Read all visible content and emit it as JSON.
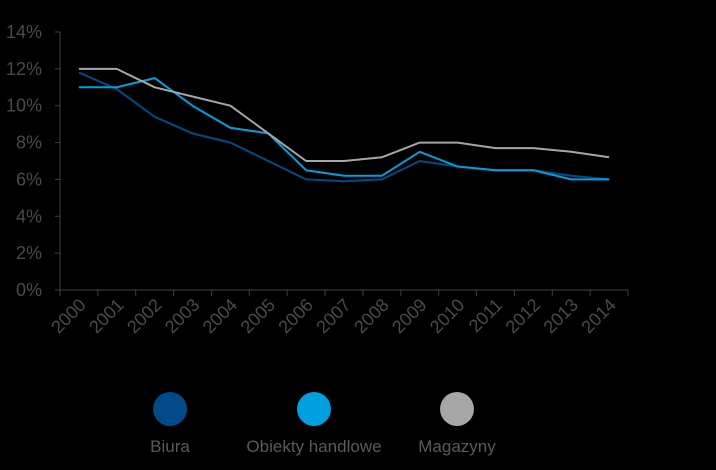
{
  "chart_data": {
    "type": "line",
    "x": [
      "2000",
      "2001",
      "2002",
      "2003",
      "2004",
      "2005",
      "2006",
      "2007",
      "2008",
      "2009",
      "2010",
      "2011",
      "2012",
      "2013",
      "2014"
    ],
    "yticks": [
      "0%",
      "2%",
      "4%",
      "6%",
      "8%",
      "10%",
      "12%",
      "14%"
    ],
    "ylim": [
      0,
      14
    ],
    "grid": false,
    "legend_position": "bottom",
    "series": [
      {
        "name": "Biura",
        "color": "#004b87",
        "values": [
          11.8,
          10.9,
          9.4,
          8.5,
          8.0,
          7.0,
          6.0,
          5.9,
          6.0,
          7.0,
          6.7,
          6.5,
          6.5,
          6.2,
          6.0
        ]
      },
      {
        "name": "Obiekty handlowe",
        "color": "#009fdf",
        "values": [
          11.0,
          11.0,
          11.5,
          10.0,
          8.8,
          8.5,
          6.5,
          6.2,
          6.2,
          7.5,
          6.7,
          6.5,
          6.5,
          6.0,
          6.0
        ]
      },
      {
        "name": "Magazyny",
        "color": "#a6a6a6",
        "values": [
          12.0,
          12.0,
          11.0,
          10.5,
          10.0,
          8.5,
          7.0,
          7.0,
          7.2,
          8.0,
          8.0,
          7.7,
          7.7,
          7.5,
          7.2
        ]
      }
    ]
  }
}
